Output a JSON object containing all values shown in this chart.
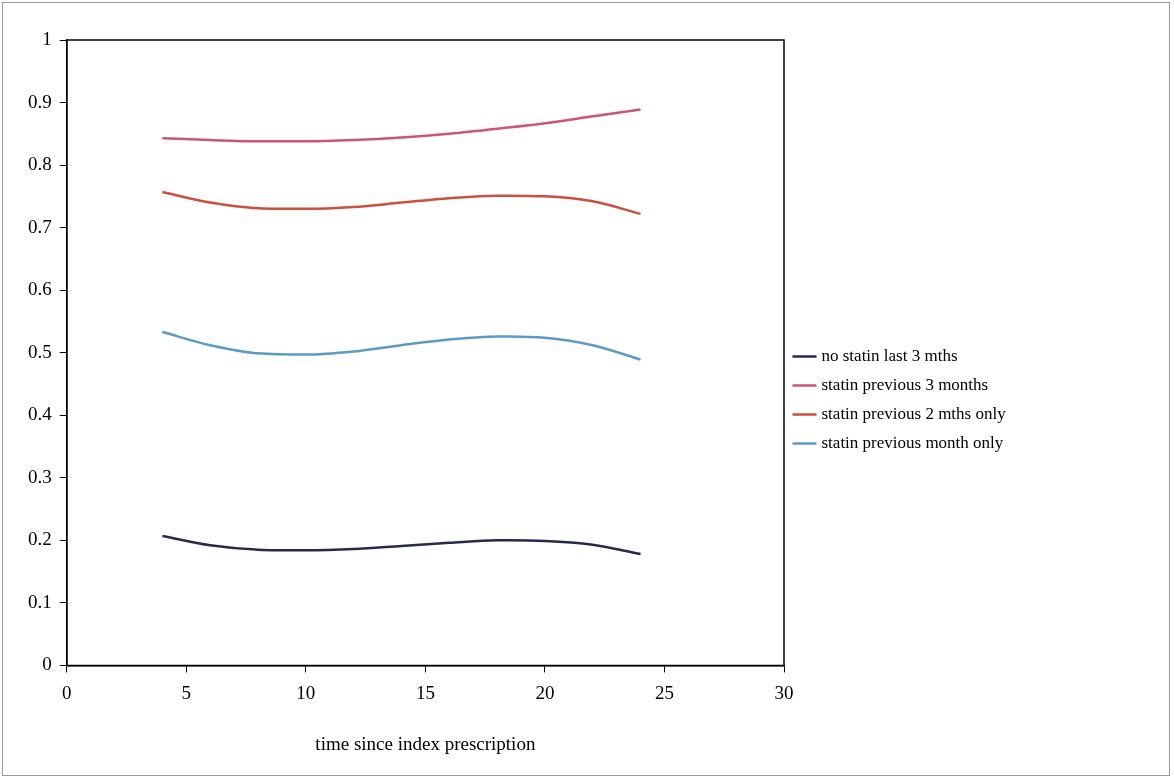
{
  "chart_data": {
    "type": "line",
    "xlabel": "time since index prescription",
    "xlim": [
      0,
      30
    ],
    "xticks": [
      0,
      5,
      10,
      15,
      20,
      25,
      30
    ],
    "ylim": [
      0,
      1
    ],
    "yticks": [
      0,
      0.1,
      0.2,
      0.3,
      0.4,
      0.5,
      0.6,
      0.7,
      0.8,
      0.9,
      1
    ],
    "grid": false,
    "legend": "right",
    "marker": "none",
    "line_style": "solid",
    "x": [
      4,
      6,
      8,
      10,
      12,
      14,
      16,
      18,
      20,
      22,
      24
    ],
    "series": [
      {
        "name": "no statin last 3 mths",
        "color": "#262b4e",
        "values": [
          0.207,
          0.192,
          0.185,
          0.184,
          0.186,
          0.191,
          0.196,
          0.2,
          0.199,
          0.193,
          0.178
        ]
      },
      {
        "name": "statin previous 3 months",
        "color": "#cc5577",
        "values": [
          0.843,
          0.84,
          0.838,
          0.838,
          0.84,
          0.844,
          0.85,
          0.858,
          0.867,
          0.878,
          0.889
        ]
      },
      {
        "name": "statin previous 2 mths only",
        "color": "#cc4f40",
        "values": [
          0.757,
          0.74,
          0.731,
          0.73,
          0.733,
          0.74,
          0.747,
          0.751,
          0.75,
          0.742,
          0.722
        ]
      },
      {
        "name": "statin previous month only",
        "color": "#5b9bc6",
        "values": [
          0.533,
          0.512,
          0.499,
          0.497,
          0.502,
          0.512,
          0.521,
          0.526,
          0.524,
          0.512,
          0.489
        ]
      }
    ]
  }
}
